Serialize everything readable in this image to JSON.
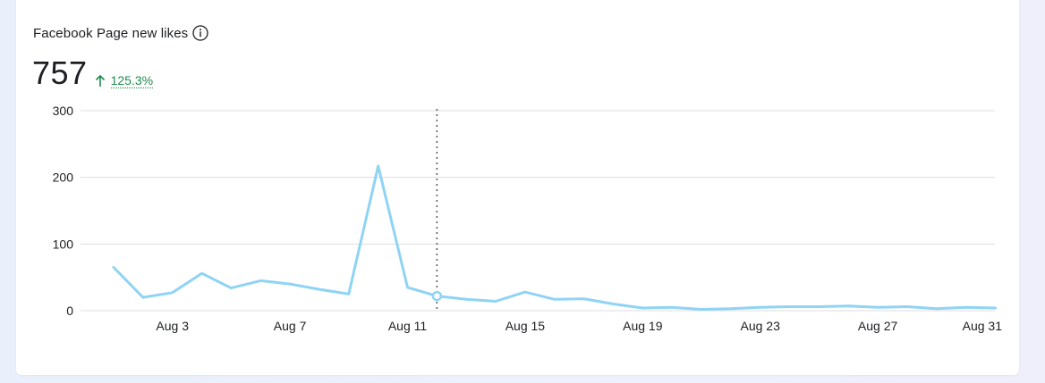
{
  "header": {
    "title": "Facebook Page new likes",
    "info_icon": "info-icon",
    "metric_value": "757",
    "delta_text": "125.3%",
    "delta_icon": "arrow-up-icon",
    "delta_color": "#1e8a4c"
  },
  "chart_data": {
    "type": "line",
    "title": "Facebook Page new likes",
    "xlabel": "",
    "ylabel": "",
    "grid": true,
    "line_color": "#8fd3f5",
    "ylim": [
      0,
      300
    ],
    "yticks": [
      0,
      100,
      200,
      300
    ],
    "x_start_label": "Aug 1",
    "x": [
      "Aug 1",
      "Aug 2",
      "Aug 3",
      "Aug 4",
      "Aug 5",
      "Aug 6",
      "Aug 7",
      "Aug 8",
      "Aug 9",
      "Aug 10",
      "Aug 11",
      "Aug 12",
      "Aug 13",
      "Aug 14",
      "Aug 15",
      "Aug 16",
      "Aug 17",
      "Aug 18",
      "Aug 19",
      "Aug 20",
      "Aug 21",
      "Aug 22",
      "Aug 23",
      "Aug 24",
      "Aug 25",
      "Aug 26",
      "Aug 27",
      "Aug 28",
      "Aug 29",
      "Aug 30",
      "Aug 31"
    ],
    "values": [
      65,
      20,
      27,
      56,
      34,
      45,
      40,
      32,
      25,
      217,
      35,
      22,
      17,
      14,
      28,
      17,
      18,
      10,
      4,
      5,
      2,
      3,
      5,
      6,
      6,
      7,
      5,
      6,
      3,
      5,
      4
    ],
    "xtick_labels": [
      "Aug 3",
      "Aug 7",
      "Aug 11",
      "Aug 15",
      "Aug 19",
      "Aug 23",
      "Aug 27",
      "Aug 31"
    ],
    "xtick_indices": [
      2,
      6,
      10,
      14,
      18,
      22,
      26,
      30
    ],
    "highlight_index": 11
  }
}
